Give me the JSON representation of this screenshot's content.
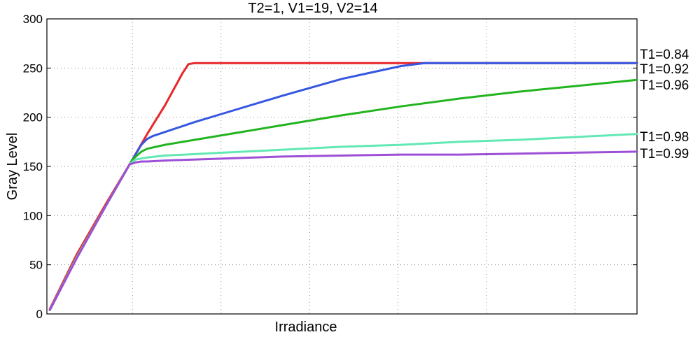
{
  "chart_data": {
    "type": "line",
    "title": "T2=1, V1=19, V2=14",
    "xlabel": "Irradiance",
    "ylabel": "Gray Level",
    "xlim": [
      0,
      100
    ],
    "ylim": [
      0,
      300
    ],
    "yticks": [
      0,
      50,
      100,
      150,
      200,
      250,
      300
    ],
    "yticklabels": [
      "0",
      "50",
      "100",
      "150",
      "200",
      "250",
      "300"
    ],
    "xgrid": [
      14.5,
      29.5,
      44.5,
      59.5,
      74.5,
      89.5
    ],
    "grid": true,
    "series": [
      {
        "name": "T1=0.84",
        "label": "T1=0.84",
        "color": "#e8262a",
        "x": [
          0.5,
          5,
          10,
          14.5,
          17,
          20,
          23,
          24,
          25,
          40,
          60,
          80,
          100
        ],
        "y": [
          5,
          60,
          112,
          157,
          183,
          212,
          245,
          254,
          255,
          255,
          255,
          255,
          255
        ]
      },
      {
        "name": "T1=0.92",
        "label": "T1=0.92",
        "color": "#3556e0",
        "x": [
          0.5,
          5,
          10,
          14.5,
          16,
          17,
          18,
          20,
          25,
          30,
          40,
          50,
          60,
          64,
          65,
          80,
          100
        ],
        "y": [
          4,
          57,
          110,
          157,
          172,
          178,
          181,
          185,
          195,
          204,
          222,
          239,
          252,
          255,
          255,
          255,
          255
        ]
      },
      {
        "name": "T1=0.96",
        "label": "T1=0.96",
        "color": "#22b41e",
        "x": [
          0.5,
          5,
          10,
          14.5,
          16,
          17,
          20,
          30,
          40,
          50,
          60,
          70,
          80,
          90,
          100
        ],
        "y": [
          4,
          57,
          110,
          157,
          165,
          168,
          172,
          182,
          192,
          202,
          211,
          219,
          226,
          232,
          238
        ]
      },
      {
        "name": "T1=0.98",
        "label": "T1=0.98",
        "color": "#62e8b4",
        "x": [
          0.5,
          5,
          10,
          14,
          15,
          16,
          17,
          20,
          30,
          40,
          50,
          60,
          70,
          80,
          90,
          100
        ],
        "y": [
          4,
          57,
          110,
          152,
          157,
          158,
          159,
          161,
          164,
          167,
          170,
          172,
          175,
          177,
          180,
          183
        ]
      },
      {
        "name": "T1=0.99",
        "label": "T1=0.99",
        "color": "#9d4fd6",
        "x": [
          0.5,
          5,
          10,
          14,
          15,
          16,
          17,
          20,
          30,
          40,
          50,
          60,
          70,
          80,
          90,
          100
        ],
        "y": [
          4,
          56,
          110,
          152,
          154,
          155,
          155,
          156,
          158,
          160,
          161,
          162,
          162,
          163,
          164,
          165
        ]
      }
    ]
  }
}
